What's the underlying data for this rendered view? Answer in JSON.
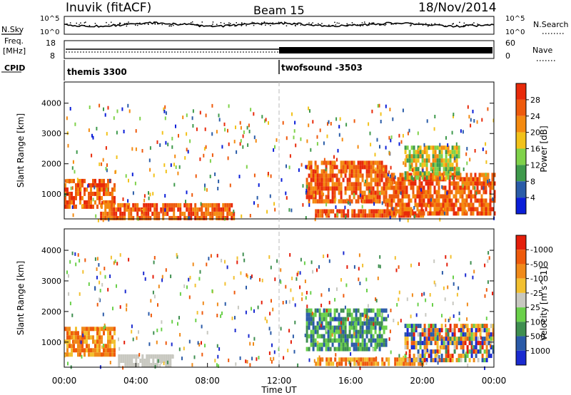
{
  "header": {
    "station": "Inuvik (fitACF)",
    "beam": "Beam 15",
    "date": "18/Nov/2014"
  },
  "top_panels": {
    "nsky_label": "N.Sky",
    "nsky_ticks": [
      "10^5",
      "10^0"
    ],
    "nsearch_label": "N.Search",
    "nsearch_ticks": [
      "10^5",
      "10^0"
    ],
    "freq_label_1": "Freq.",
    "freq_label_2": "[MHz]",
    "freq_ticks": [
      "18",
      "8"
    ],
    "nave_label": "Nave",
    "nave_ticks": [
      "60",
      "0"
    ],
    "cpid_label": "CPID",
    "cpid_modes": [
      {
        "name": "themis 3300",
        "start_hour": 0
      },
      {
        "name": "twofsound -3503",
        "start_hour": 12
      }
    ]
  },
  "chart_data": [
    {
      "type": "heatmap",
      "title": "",
      "xlabel": "",
      "ylabel": "Slant Range [km]",
      "x_range_hours": [
        0,
        24
      ],
      "ylim_km": [
        180,
        4700
      ],
      "y_ticks": [
        "1000",
        "2000",
        "3000",
        "4000"
      ],
      "colorbar_label": "Power [dB]",
      "colorbar_ticks": [
        "4",
        "8",
        "12",
        "16",
        "20",
        "24",
        "28"
      ],
      "colors": [
        "#0a1ed8",
        "#2a5ca8",
        "#3f9a4c",
        "#7fd24a",
        "#f2c21a",
        "#f48a10",
        "#ee5a0c",
        "#e82a0a"
      ],
      "dominant_patches": [
        {
          "hours": [
            0.0,
            2.8
          ],
          "range_km": [
            550,
            1500
          ],
          "level": "high"
        },
        {
          "hours": [
            2.0,
            9.5
          ],
          "range_km": [
            250,
            700
          ],
          "level": "high"
        },
        {
          "hours": [
            13.5,
            18.0
          ],
          "range_km": [
            700,
            2100
          ],
          "level": "high"
        },
        {
          "hours": [
            14.0,
            20.0
          ],
          "range_km": [
            250,
            500
          ],
          "level": "high"
        },
        {
          "hours": [
            18.0,
            24.0
          ],
          "range_km": [
            400,
            1700
          ],
          "level": "high"
        },
        {
          "hours": [
            19.0,
            22.0
          ],
          "range_km": [
            1500,
            2600
          ],
          "level": "medium"
        }
      ]
    },
    {
      "type": "heatmap",
      "title": "",
      "xlabel": "Time UT",
      "ylabel": "Slant Range [km]",
      "x_range_hours": [
        0,
        24
      ],
      "x_ticks": [
        "00:00",
        "04:00",
        "08:00",
        "12:00",
        "16:00",
        "20:00",
        "00:00"
      ],
      "ylim_km": [
        180,
        4700
      ],
      "y_ticks": [
        "1000",
        "2000",
        "3000",
        "4000"
      ],
      "colorbar_label": "Velocity [m s^-1]",
      "colorbar_ticks": [
        "1000",
        "500",
        "100",
        "25",
        "-25",
        "-100",
        "-500",
        "-1000"
      ],
      "colors": [
        "#1a2ad0",
        "#2a5aa8",
        "#3f8f50",
        "#6ad04a",
        "#c8c8c0",
        "#f2c030",
        "#f08a1a",
        "#ee5a0c",
        "#e41e0a"
      ],
      "dominant_patches": [
        {
          "hours": [
            0.0,
            2.8
          ],
          "range_km": [
            600,
            1500
          ],
          "level": "negative"
        },
        {
          "hours": [
            3.0,
            6.0
          ],
          "range_km": [
            300,
            600
          ],
          "level": "near-zero"
        },
        {
          "hours": [
            13.5,
            18.0
          ],
          "range_km": [
            800,
            2100
          ],
          "level": "positive"
        },
        {
          "hours": [
            14.0,
            20.0
          ],
          "range_km": [
            250,
            500
          ],
          "level": "negative"
        },
        {
          "hours": [
            19.0,
            24.0
          ],
          "range_km": [
            400,
            1600
          ],
          "level": "mixed"
        }
      ]
    }
  ]
}
